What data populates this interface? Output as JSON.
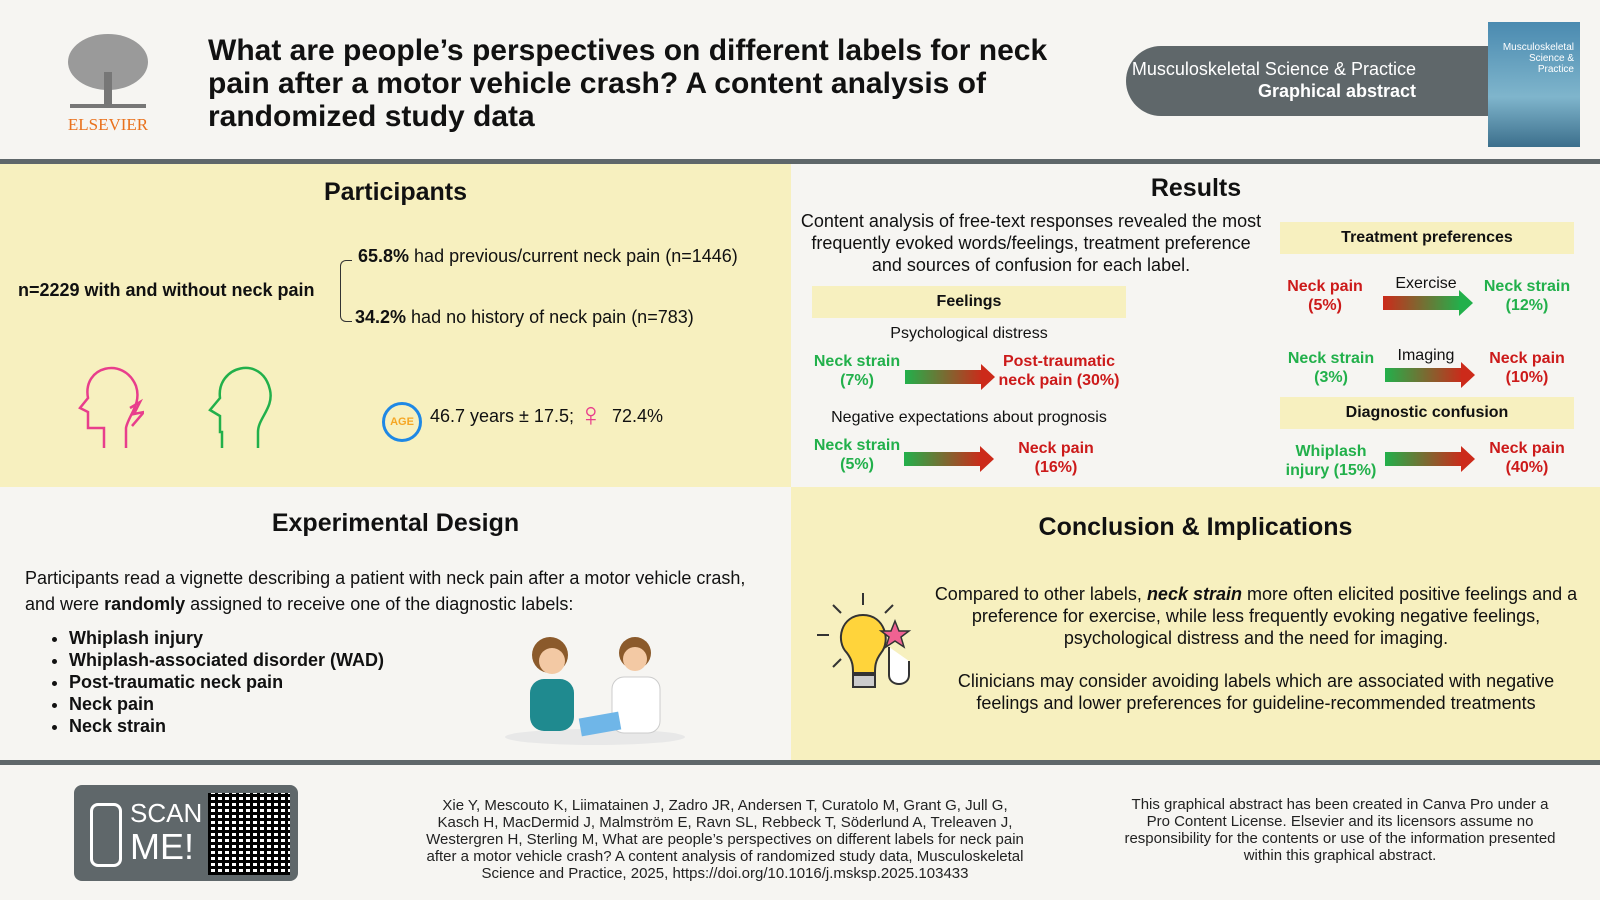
{
  "header": {
    "publisher": "ELSEVIER",
    "title": "What are people’s perspectives on different labels for neck pain after a motor vehicle crash? A content analysis of randomized study data",
    "journal": "Musculoskeletal Science & Practice",
    "subtitle": "Graphical abstract",
    "cover_text": "Musculoskeletal Science & Practice"
  },
  "participants": {
    "heading": "Participants",
    "total": "n=2229 with and without neck pain",
    "pct1": "65.8%",
    "line1": " had previous/current neck pain (n=1446)",
    "pct2": "34.2%",
    "line2": " had no history of neck pain (n=783)",
    "age_badge": "AGE",
    "age": "46.7 years ± 17.5;",
    "female": "72.4%"
  },
  "results": {
    "heading": "Results",
    "intro": "Content analysis of free-text responses revealed the most frequently evoked words/feelings, treatment preference and sources of confusion for each label.",
    "feelings": {
      "heading": "Feelings",
      "sub1": "Psychological distress",
      "a_from": "Neck strain (7%)",
      "a_to": "Post-traumatic neck pain (30%)",
      "sub2": "Negative expectations about prognosis",
      "b_from": "Neck strain (5%)",
      "b_to": "Neck pain (16%)"
    },
    "treatment": {
      "heading": "Treatment preferences",
      "a_from": "Neck pain (5%)",
      "a_label": "Exercise",
      "a_to": "Neck strain (12%)",
      "b_from": "Neck strain (3%)",
      "b_label": "Imaging",
      "b_to": "Neck pain (10%)"
    },
    "confusion": {
      "heading": "Diagnostic confusion",
      "from": "Whiplash injury (15%)",
      "to": "Neck pain (40%)"
    }
  },
  "design": {
    "heading": "Experimental Design",
    "text1": "Participants read a vignette describing a patient with neck pain after a motor vehicle crash, and were ",
    "bold": "randomly",
    "text2": " assigned to receive one of the diagnostic labels:",
    "labels": [
      "Whiplash injury",
      "Whiplash-associated disorder (WAD)",
      "Post-traumatic neck pain",
      "Neck pain",
      "Neck strain"
    ]
  },
  "conclusion": {
    "heading": "Conclusion & Implications",
    "p1a": "Compared to other labels, ",
    "p1b": "neck strain",
    "p1c": " more often elicited positive feelings and a preference for exercise, while less frequently evoking negative feelings, psychological distress and the need for imaging.",
    "p2": "Clinicians may consider avoiding labels which are associated with negative feelings and lower preferences for guideline-recommended treatments"
  },
  "footer": {
    "scan1": "SCAN",
    "scan2": "ME!",
    "citation": "Xie Y, Mescouto K, Liimatainen J, Zadro JR, Andersen T, Curatolo M, Grant G, Jull G, Kasch H, MacDermid J, Malmström E, Ravn SL, Rebbeck T, Söderlund A, Treleaven J, Westergren H, Sterling M, What are people’s perspectives on different labels for neck pain after a motor vehicle crash? A content analysis of randomized study data, Musculoskeletal Science and Practice, 2025, https://doi.org/10.1016/j.msksp.2025.103433",
    "disclaimer": "This graphical abstract has been created in Canva Pro under a Pro Content License. Elsevier and its licensors assume no responsibility for the contents or use of the information presented within this graphical abstract."
  },
  "colors": {
    "accent_gray": "#5f676a",
    "panel_yellow": "#f7f0bf",
    "green": "#22b04b",
    "red": "#cc1a1a",
    "elsevier_orange": "#e9711c"
  }
}
